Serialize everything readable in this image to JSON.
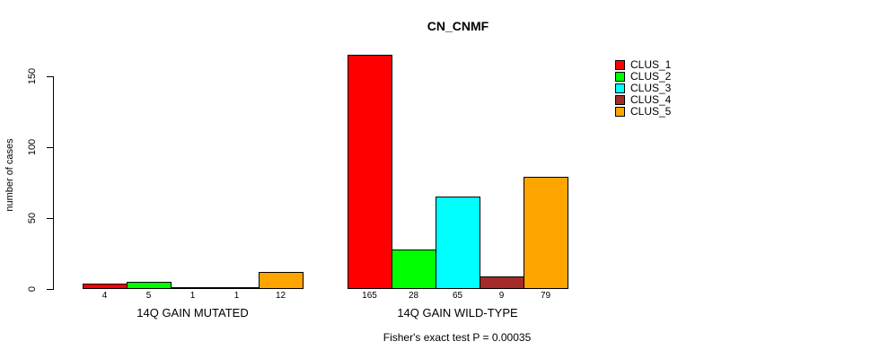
{
  "title": "CN_CNMF",
  "ylabel": "number of cases",
  "footer": "Fisher's exact test P = 0.00035",
  "legend": {
    "items": [
      {
        "label": "CLUS_1",
        "color": "#FF0000"
      },
      {
        "label": "CLUS_2",
        "color": "#00FF00"
      },
      {
        "label": "CLUS_3",
        "color": "#00FFFF"
      },
      {
        "label": "CLUS_4",
        "color": "#A52A2A"
      },
      {
        "label": "CLUS_5",
        "color": "#FFA500"
      }
    ]
  },
  "chart_data": {
    "type": "bar",
    "title": "CN_CNMF",
    "xlabel": "",
    "ylabel": "number of cases",
    "yticks": [
      0,
      50,
      100,
      150
    ],
    "ylim": [
      0,
      165
    ],
    "grid": false,
    "legend_position": "top-right",
    "series_names": [
      "CLUS_1",
      "CLUS_2",
      "CLUS_3",
      "CLUS_4",
      "CLUS_5"
    ],
    "series_colors": [
      "#FF0000",
      "#00FF00",
      "#00FFFF",
      "#A52A2A",
      "#FFA500"
    ],
    "groups": [
      {
        "label": "14Q GAIN MUTATED",
        "values": [
          4,
          5,
          1,
          1,
          12
        ]
      },
      {
        "label": "14Q GAIN WILD-TYPE",
        "values": [
          165,
          28,
          65,
          9,
          79
        ]
      }
    ],
    "annotation": "Fisher's exact test P = 0.00035"
  }
}
